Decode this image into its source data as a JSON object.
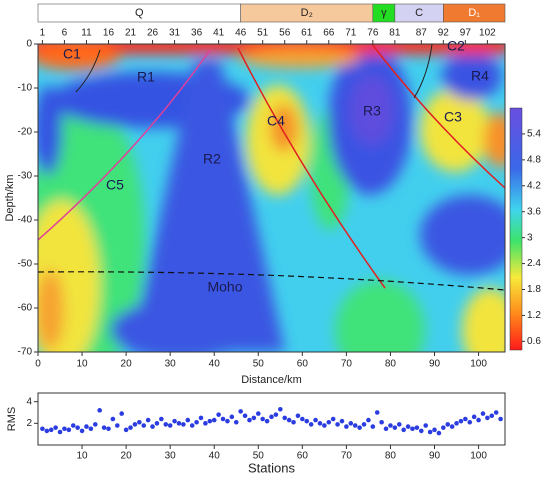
{
  "chart_data": [
    {
      "type": "contour",
      "xlabel": "Distance/km",
      "ylabel": "Depth/km",
      "xlim": [
        0,
        106
      ],
      "ylim": [
        -70,
        0
      ],
      "xticks": [
        0,
        10,
        20,
        30,
        40,
        50,
        60,
        70,
        80,
        90,
        100
      ],
      "yticks": [
        0,
        -10,
        -20,
        -30,
        -40,
        -50,
        -60,
        -70
      ],
      "station_ticks": [
        1,
        6,
        11,
        16,
        21,
        26,
        31,
        36,
        41,
        46,
        51,
        56,
        61,
        66,
        71,
        76,
        81,
        87,
        92,
        97,
        102
      ],
      "units": [
        {
          "label": "Q",
          "range": [
            0,
            46
          ],
          "color": "#ffffff"
        },
        {
          "label": "D₂",
          "range": [
            46,
            76
          ],
          "color": "#f6c99c"
        },
        {
          "label": "γ",
          "range": [
            76,
            81
          ],
          "color": "#22dd22"
        },
        {
          "label": "C",
          "range": [
            81,
            92
          ],
          "color": "#d4d2f2"
        },
        {
          "label": "D₁",
          "range": [
            92,
            106
          ],
          "color": "#f07a30"
        }
      ],
      "colorbar": {
        "lim": [
          0.4,
          6.0
        ],
        "ticks": [
          0.6,
          1.2,
          1.8,
          2.4,
          3,
          3.6,
          4.2,
          4.8,
          5.4
        ]
      },
      "annotations": [
        "C1",
        "R1",
        "R2",
        "C4",
        "R3",
        "C3",
        "C2",
        "R4",
        "C5",
        "Moho"
      ]
    },
    {
      "type": "scatter",
      "xlabel": "Stations",
      "ylabel": "RMS",
      "xlim": [
        0,
        106
      ],
      "ylim": [
        0,
        4.8
      ],
      "xticks": [
        10,
        20,
        30,
        40,
        50,
        60,
        70,
        80,
        90,
        100
      ],
      "yticks": [
        2,
        4
      ],
      "color": "#2b3de0",
      "x": [
        1,
        2,
        3,
        4,
        5,
        6,
        7,
        8,
        9,
        10,
        11,
        12,
        13,
        14,
        15,
        16,
        17,
        18,
        19,
        20,
        21,
        22,
        23,
        24,
        25,
        26,
        27,
        28,
        29,
        30,
        31,
        32,
        33,
        34,
        35,
        36,
        37,
        38,
        39,
        40,
        41,
        42,
        43,
        44,
        45,
        46,
        47,
        48,
        49,
        50,
        51,
        52,
        53,
        54,
        55,
        56,
        57,
        58,
        59,
        60,
        61,
        62,
        63,
        64,
        65,
        66,
        67,
        68,
        69,
        70,
        71,
        72,
        73,
        74,
        75,
        76,
        77,
        78,
        79,
        80,
        81,
        82,
        83,
        84,
        85,
        86,
        87,
        88,
        89,
        90,
        91,
        92,
        93,
        94,
        95,
        96,
        97,
        98,
        99,
        100,
        101,
        102,
        103,
        104,
        105
      ],
      "values": [
        1.5,
        1.3,
        1.4,
        1.6,
        1.2,
        1.5,
        1.4,
        1.8,
        1.6,
        1.3,
        1.7,
        1.5,
        1.9,
        3.2,
        1.6,
        1.5,
        2.4,
        1.8,
        2.9,
        1.4,
        1.6,
        1.9,
        2.1,
        1.8,
        2.3,
        1.7,
        2.0,
        2.4,
        1.9,
        1.8,
        2.2,
        2.0,
        1.9,
        2.3,
        1.8,
        2.1,
        2.5,
        2.0,
        2.2,
        2.3,
        2.8,
        2.4,
        2.2,
        2.6,
        2.1,
        3.1,
        2.7,
        2.3,
        2.5,
        2.9,
        2.4,
        2.2,
        2.6,
        2.8,
        3.3,
        2.5,
        2.3,
        2.1,
        2.7,
        2.4,
        2.2,
        1.9,
        2.3,
        2.0,
        1.8,
        2.1,
        2.4,
        1.9,
        2.2,
        1.7,
        2.0,
        1.8,
        1.6,
        1.9,
        2.3,
        1.7,
        3.0,
        2.1,
        1.5,
        1.8,
        1.6,
        1.9,
        1.4,
        1.7,
        1.5,
        1.6,
        1.3,
        1.8,
        1.2,
        1.4,
        1.1,
        1.6,
        1.9,
        1.7,
        2.0,
        2.2,
        2.4,
        2.1,
        2.6,
        2.3,
        2.9,
        2.5,
        2.7,
        3.0,
        2.4
      ]
    }
  ]
}
